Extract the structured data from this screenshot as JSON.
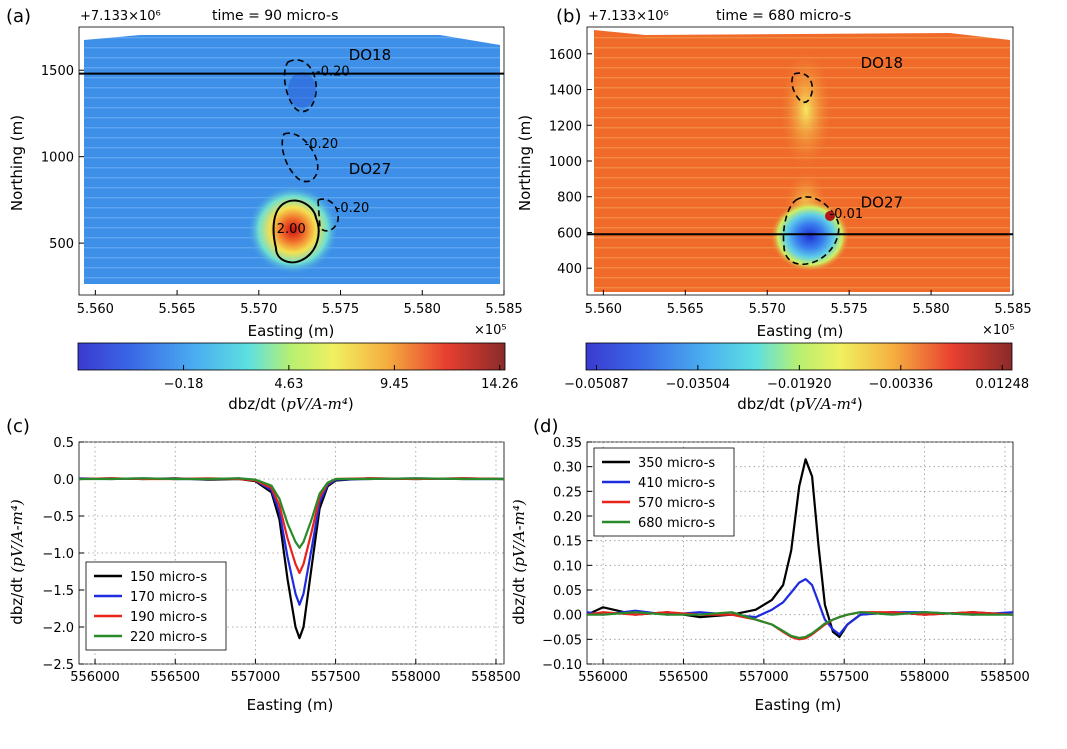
{
  "colors": {
    "series_black": "#000000",
    "series_blue": "#1f2bdf",
    "series_red": "#e8231a",
    "series_green": "#2a8a2a",
    "map_a_bg": "#3d8fe8",
    "map_b_bg": "#f06a2a"
  },
  "chart_data": [
    {
      "type": "heatmap",
      "panel_label": "(a)",
      "title": "time = 90 micro-s",
      "offset_label": "+7.133×10⁶",
      "xlabel": "Easting (m)",
      "ylabel": "Northing (m)",
      "x_multiplier": "×10⁵",
      "x_ticks": [
        "5.560",
        "5.565",
        "5.570",
        "5.575",
        "5.580",
        "5.585"
      ],
      "y_ticks": [
        "500",
        "1000",
        "1500"
      ],
      "x_range": [
        5.559,
        5.585
      ],
      "y_range": [
        200,
        1750
      ],
      "profile_line_northing": 1480,
      "annotations": [
        {
          "text": "DO18",
          "x": 5.5755,
          "y": 1560
        },
        {
          "text": "DO27",
          "x": 5.5755,
          "y": 900
        },
        {
          "text": "-0.20",
          "x": 5.5735,
          "y": 1470
        },
        {
          "text": "-0.20",
          "x": 5.5728,
          "y": 1050
        },
        {
          "text": "-0.20",
          "x": 5.5747,
          "y": 680
        },
        {
          "text": "2.00",
          "x": 5.5711,
          "y": 560
        }
      ],
      "colorbar": {
        "ticks": [
          "-0.18",
          "4.63",
          "9.45",
          "14.26"
        ],
        "tick_values": [
          -0.18,
          4.63,
          9.45,
          14.26
        ],
        "range": [
          -5.0,
          14.5
        ],
        "label": "dbz/dt",
        "unit": "pV/A-m⁴"
      }
    },
    {
      "type": "heatmap",
      "panel_label": "(b)",
      "title": "time = 680 micro-s",
      "offset_label": "+7.133×10⁶",
      "xlabel": "Easting (m)",
      "ylabel": "Northing (m)",
      "x_multiplier": "×10⁵",
      "x_ticks": [
        "5.560",
        "5.565",
        "5.570",
        "5.575",
        "5.580",
        "5.585"
      ],
      "y_ticks": [
        "400",
        "600",
        "800",
        "1000",
        "1200",
        "1400",
        "1600"
      ],
      "x_range": [
        5.559,
        5.585
      ],
      "y_range": [
        250,
        1750
      ],
      "profile_line_northing": 590,
      "annotations": [
        {
          "text": "DO18",
          "x": 5.5757,
          "y": 1520
        },
        {
          "text": "DO27",
          "x": 5.5757,
          "y": 740
        },
        {
          "text": "-0.01",
          "x": 5.5738,
          "y": 680
        }
      ],
      "colorbar": {
        "ticks": [
          "-0.05087",
          "-0.03504",
          "-0.01920",
          "-0.00336",
          "0.01248"
        ],
        "tick_values": [
          -0.05087,
          -0.03504,
          -0.0192,
          -0.00336,
          0.01248
        ],
        "range": [
          -0.0525,
          0.014
        ],
        "label": "dbz/dt",
        "unit": "pV/A-m⁴"
      }
    },
    {
      "type": "line",
      "panel_label": "(c)",
      "xlabel": "Easting (m)",
      "ylabel": "dbz/dt",
      "yunit": "(pV/A-m⁴)",
      "xlim": [
        555900,
        558550
      ],
      "ylim": [
        -2.5,
        0.5
      ],
      "x_ticks": [
        556000,
        556500,
        557000,
        557500,
        558000,
        558500
      ],
      "y_ticks": [
        -2.5,
        -2.0,
        -1.5,
        -1.0,
        -0.5,
        0.0,
        0.5
      ],
      "x_tick_labels": [
        "556000",
        "556500",
        "557000",
        "557500",
        "558000",
        "558500"
      ],
      "y_tick_labels": [
        "−2.5",
        "−2.0",
        "−1.5",
        "−1.0",
        "−0.5",
        "0.0",
        "0.5"
      ],
      "grid": true,
      "legend_position": "lower-left",
      "x": [
        555900,
        556100,
        556300,
        556500,
        556700,
        556900,
        557000,
        557100,
        557150,
        557200,
        557250,
        557275,
        557300,
        557350,
        557400,
        557450,
        557500,
        557700,
        558000,
        558300,
        558550
      ],
      "series": [
        {
          "name": "150 micro-s",
          "color": "#000000",
          "values": [
            0,
            0.01,
            0,
            0.01,
            -0.01,
            0,
            -0.03,
            -0.18,
            -0.55,
            -1.35,
            -2.0,
            -2.15,
            -2.0,
            -1.2,
            -0.4,
            -0.1,
            -0.02,
            0.01,
            0,
            0.01,
            0
          ]
        },
        {
          "name": "170 micro-s",
          "color": "#1f2bdf",
          "values": [
            0.01,
            0,
            0.01,
            0,
            0,
            0.01,
            -0.02,
            -0.15,
            -0.45,
            -1.05,
            -1.55,
            -1.7,
            -1.55,
            -0.95,
            -0.32,
            -0.08,
            -0.01,
            0,
            0.01,
            0,
            0
          ]
        },
        {
          "name": "190 micro-s",
          "color": "#e8231a",
          "values": [
            0,
            0.01,
            0,
            0,
            0.01,
            0,
            -0.02,
            -0.12,
            -0.36,
            -0.8,
            -1.15,
            -1.27,
            -1.15,
            -0.72,
            -0.25,
            -0.06,
            0,
            0.01,
            0,
            0.01,
            0
          ]
        },
        {
          "name": "220 micro-s",
          "color": "#2a8a2a",
          "values": [
            0,
            0,
            0.01,
            0,
            0,
            0.01,
            -0.01,
            -0.09,
            -0.27,
            -0.6,
            -0.85,
            -0.93,
            -0.85,
            -0.55,
            -0.2,
            -0.05,
            0,
            0,
            0.01,
            0,
            0
          ]
        }
      ]
    },
    {
      "type": "line",
      "panel_label": "(d)",
      "xlabel": "Easting (m)",
      "ylabel": "dbz/dt",
      "yunit": "(pV/A-m⁴)",
      "xlim": [
        555900,
        558550
      ],
      "ylim": [
        -0.1,
        0.35
      ],
      "x_ticks": [
        556000,
        556500,
        557000,
        557500,
        558000,
        558500
      ],
      "y_ticks": [
        -0.1,
        -0.05,
        0.0,
        0.05,
        0.1,
        0.15,
        0.2,
        0.25,
        0.3,
        0.35
      ],
      "x_tick_labels": [
        "556000",
        "556500",
        "557000",
        "557500",
        "558000",
        "558500"
      ],
      "y_tick_labels": [
        "−0.10",
        "−0.05",
        "0.00",
        "0.05",
        "0.10",
        "0.15",
        "0.20",
        "0.25",
        "0.30",
        "0.35"
      ],
      "grid": true,
      "legend_position": "upper-left",
      "x": [
        555900,
        556000,
        556200,
        556400,
        556600,
        556800,
        556950,
        557050,
        557120,
        557170,
        557220,
        557260,
        557300,
        557340,
        557380,
        557430,
        557470,
        557520,
        557600,
        557800,
        558000,
        558300,
        558550
      ],
      "series": [
        {
          "name": "350 micro-s",
          "color": "#000000",
          "values": [
            0.0,
            0.015,
            0.0,
            0.005,
            -0.005,
            0.0,
            0.01,
            0.03,
            0.06,
            0.13,
            0.26,
            0.315,
            0.28,
            0.14,
            0.02,
            -0.035,
            -0.045,
            -0.02,
            0.0,
            0.005,
            0.0,
            0.005,
            0.0
          ]
        },
        {
          "name": "410 micro-s",
          "color": "#1f2bdf",
          "values": [
            0.005,
            0.0,
            0.008,
            0.0,
            0.005,
            0.0,
            -0.005,
            0.01,
            0.025,
            0.045,
            0.065,
            0.072,
            0.06,
            0.025,
            -0.01,
            -0.03,
            -0.04,
            -0.02,
            0.0,
            0.005,
            0.005,
            0.0,
            0.005
          ]
        },
        {
          "name": "570 micro-s",
          "color": "#e8231a",
          "values": [
            0.0,
            0.005,
            0.0,
            0.005,
            0.0,
            0.0,
            -0.01,
            -0.02,
            -0.035,
            -0.045,
            -0.05,
            -0.048,
            -0.04,
            -0.03,
            -0.02,
            -0.01,
            -0.005,
            0.0,
            0.005,
            0.005,
            0.0,
            0.005,
            0.0
          ]
        },
        {
          "name": "680 micro-s",
          "color": "#2a8a2a",
          "values": [
            0.0,
            0.0,
            0.005,
            0.0,
            0.0,
            0.005,
            -0.01,
            -0.02,
            -0.033,
            -0.043,
            -0.047,
            -0.045,
            -0.038,
            -0.028,
            -0.018,
            -0.01,
            -0.005,
            0.0,
            0.005,
            0.0,
            0.005,
            0.0,
            0.0
          ]
        }
      ]
    }
  ]
}
